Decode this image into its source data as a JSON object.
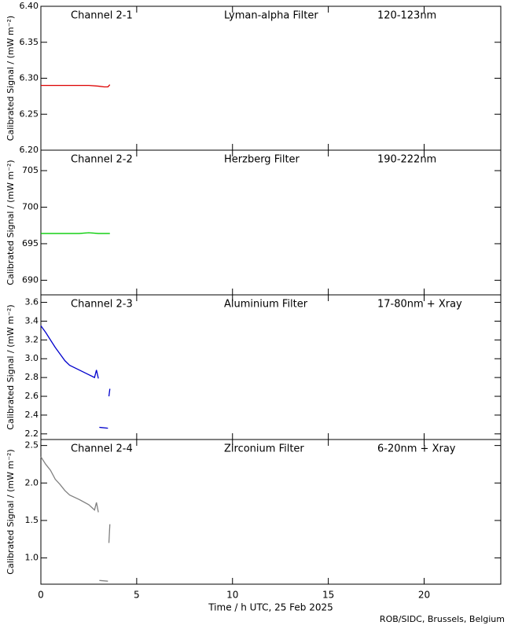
{
  "chart_data": [
    {
      "type": "line",
      "annotations": [
        "Channel 2-1",
        "Lyman-alpha Filter",
        "120-123nm"
      ],
      "y_label": "Calibrated Signal / (mW m⁻²)",
      "xlim": [
        0,
        24
      ],
      "xticks": [
        0,
        5,
        10,
        15,
        20
      ],
      "ylim": [
        6.2,
        6.4
      ],
      "yticks": [
        {
          "value": 6.2,
          "label": "6.20"
        },
        6.25,
        {
          "value": 6.3,
          "label": "6.30"
        },
        6.35,
        {
          "value": 6.4,
          "label": "6.40"
        }
      ],
      "x": [
        0,
        0.5,
        1,
        1.5,
        2,
        2.5,
        3,
        3.3,
        3.5,
        3.6
      ],
      "series": [
        {
          "color": "#dd0000",
          "values": [
            6.29,
            6.29,
            6.29,
            6.29,
            6.29,
            6.29,
            6.289,
            6.288,
            6.288,
            6.291
          ]
        }
      ]
    },
    {
      "type": "line",
      "annotations": [
        "Channel 2-2",
        "Herzberg Filter",
        "190-222nm"
      ],
      "y_label": "Calibrated Signal / (mW m⁻²)",
      "xlim": [
        0,
        24
      ],
      "xticks": [
        0,
        5,
        10,
        15,
        20
      ],
      "ylim": [
        688,
        707.8
      ],
      "yticks": [
        690,
        695,
        700,
        705
      ],
      "x": [
        0,
        1,
        2,
        2.5,
        3,
        3.6
      ],
      "series": [
        {
          "color": "#00cc00",
          "values": [
            696.4,
            696.4,
            696.4,
            696.5,
            696.4,
            696.4
          ]
        }
      ]
    },
    {
      "type": "line",
      "annotations": [
        "Channel 2-3",
        "Aluminium Filter",
        "17-80nm + Xray"
      ],
      "y_label": "Calibrated Signal / (mW m⁻²)",
      "xlim": [
        0,
        24
      ],
      "xticks": [
        0,
        5,
        10,
        15,
        20
      ],
      "ylim": [
        2.14,
        3.68
      ],
      "yticks": [
        2.2,
        2.4,
        2.6,
        2.8,
        {
          "value": 3.0,
          "label": "3.0"
        },
        3.2,
        3.4,
        3.6
      ],
      "x": [
        0,
        0.25,
        0.5,
        0.75,
        1,
        1.25,
        1.5,
        2,
        2.5,
        2.8,
        2.9,
        3.0,
        3.02,
        3.05,
        3.5,
        3.52,
        3.55,
        3.6
      ],
      "series": [
        {
          "color": "#0000cc",
          "values": [
            3.35,
            3.28,
            3.2,
            3.12,
            3.05,
            2.98,
            2.93,
            2.88,
            2.83,
            2.8,
            2.88,
            2.79,
            null,
            2.27,
            2.26,
            null,
            2.6,
            2.68
          ]
        }
      ]
    },
    {
      "type": "line",
      "annotations": [
        "Channel 2-4",
        "Zirconium Filter",
        "6-20nm + Xray"
      ],
      "y_label": "Calibrated Signal / (mW m⁻²)",
      "x_label": "Time / h UTC, 25 Feb 2025",
      "xlim": [
        0,
        24
      ],
      "xticks": [
        0,
        5,
        10,
        15,
        20
      ],
      "ylim": [
        0.65,
        2.58
      ],
      "yticks": [
        {
          "value": 1.0,
          "label": "1.0"
        },
        1.5,
        {
          "value": 2.0,
          "label": "2.0"
        },
        2.5
      ],
      "x": [
        0,
        0.25,
        0.5,
        0.75,
        1,
        1.25,
        1.5,
        2,
        2.5,
        2.8,
        2.9,
        3.0,
        3.02,
        3.05,
        3.5,
        3.52,
        3.55,
        3.6
      ],
      "series": [
        {
          "color": "#808080",
          "values": [
            2.35,
            2.25,
            2.17,
            2.05,
            1.98,
            1.9,
            1.84,
            1.78,
            1.71,
            1.64,
            1.74,
            1.61,
            null,
            0.7,
            0.69,
            null,
            1.2,
            1.45
          ]
        }
      ]
    }
  ],
  "credit": "ROB/SIDC, Brussels, Belgium"
}
